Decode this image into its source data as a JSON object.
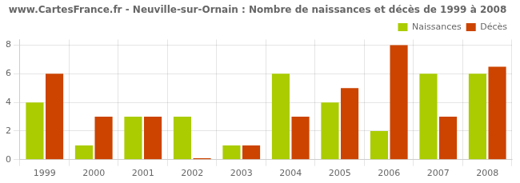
{
  "chart_data": {
    "type": "bar",
    "title": "www.CartesFrance.fr - Neuville-sur-Ornain : Nombre de naissances et décès de 1999 à 2008",
    "categories": [
      "1999",
      "2000",
      "2001",
      "2002",
      "2003",
      "2004",
      "2005",
      "2006",
      "2007",
      "2008"
    ],
    "series": [
      {
        "name": "Naissances",
        "color": "#aacc00",
        "values": [
          4,
          1,
          3,
          3,
          1,
          6,
          4,
          2,
          6,
          6
        ]
      },
      {
        "name": "Décès",
        "color": "#cc4400",
        "values": [
          6,
          3,
          3,
          0.1,
          1,
          3,
          5,
          8,
          3,
          6.5
        ]
      }
    ],
    "ylim": [
      0,
      8.4
    ],
    "yticks": [
      0,
      2,
      4,
      6,
      8
    ],
    "grid": true,
    "legend": "upper right"
  }
}
